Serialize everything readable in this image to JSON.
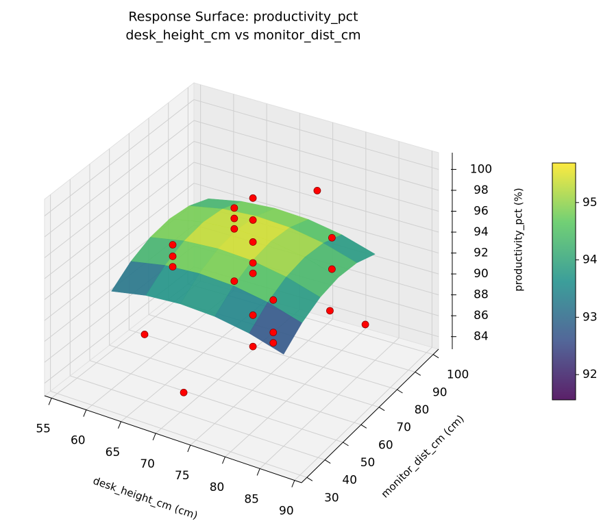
{
  "chart_data": {
    "type": "surface3d",
    "title": "Response Surface: productivity_pct",
    "subtitle": "desk_height_cm vs monitor_dist_cm",
    "x_label": "desk_height_cm (cm)",
    "y_label": "monitor_dist_cm (cm)",
    "z_label": "productivity_pct (%)",
    "xlim": [
      54,
      91
    ],
    "ylim": [
      27,
      103
    ],
    "zlim": [
      82.8,
      101.6
    ],
    "xticks": [
      55,
      60,
      65,
      70,
      75,
      80,
      85,
      90
    ],
    "yticks": [
      30,
      40,
      50,
      60,
      70,
      80,
      90,
      100
    ],
    "zticks": [
      84,
      86,
      88,
      90,
      92,
      94,
      96,
      98,
      100
    ],
    "grid": true,
    "surface": {
      "colormap": "viridis",
      "clim": [
        91.56,
        95.69
      ],
      "cbar_ticks": [
        92,
        93,
        94,
        95
      ],
      "x": [
        60,
        65,
        70,
        75,
        80,
        85
      ],
      "y": [
        40,
        50,
        60,
        70,
        80,
        90
      ],
      "z": [
        [
          92.2,
          92.88,
          93.16,
          93.04,
          92.52,
          91.6
        ],
        [
          93.55,
          94.23,
          94.51,
          94.39,
          93.87,
          92.95
        ],
        [
          94.36,
          95.04,
          95.32,
          95.2,
          94.68,
          93.76
        ],
        [
          94.63,
          95.31,
          95.59,
          95.47,
          94.95,
          94.03
        ],
        [
          94.36,
          95.04,
          95.32,
          95.2,
          94.68,
          93.76
        ],
        [
          93.55,
          94.23,
          94.51,
          94.39,
          93.87,
          92.95
        ]
      ]
    },
    "points": {
      "color": "#ff0000",
      "x": [
        60,
        70,
        60,
        60,
        60,
        65,
        65,
        65,
        72.5,
        72.5,
        72.5,
        72.5,
        72.5,
        65,
        72.5,
        72.5,
        80,
        80,
        80,
        75,
        85,
        85,
        85,
        87
      ],
      "y": [
        57.1,
        41.8,
        71.6,
        71.6,
        71.6,
        86.1,
        86.1,
        86.1,
        69.4,
        69.4,
        69.4,
        69.4,
        69.4,
        86.1,
        69.4,
        69.4,
        53,
        53,
        53,
        94.7,
        66.4,
        66.4,
        65.3,
        77.3
      ],
      "z": [
        85.5,
        84.4,
        91.9,
        90.8,
        89.8,
        94.2,
        93.2,
        92.2,
        99.2,
        97.1,
        95.0,
        93.0,
        92.0,
        87.2,
        88.0,
        85.0,
        93.6,
        90.5,
        89.5,
        96.4,
        98.4,
        95.4,
        91.6,
        88.7
      ]
    }
  }
}
